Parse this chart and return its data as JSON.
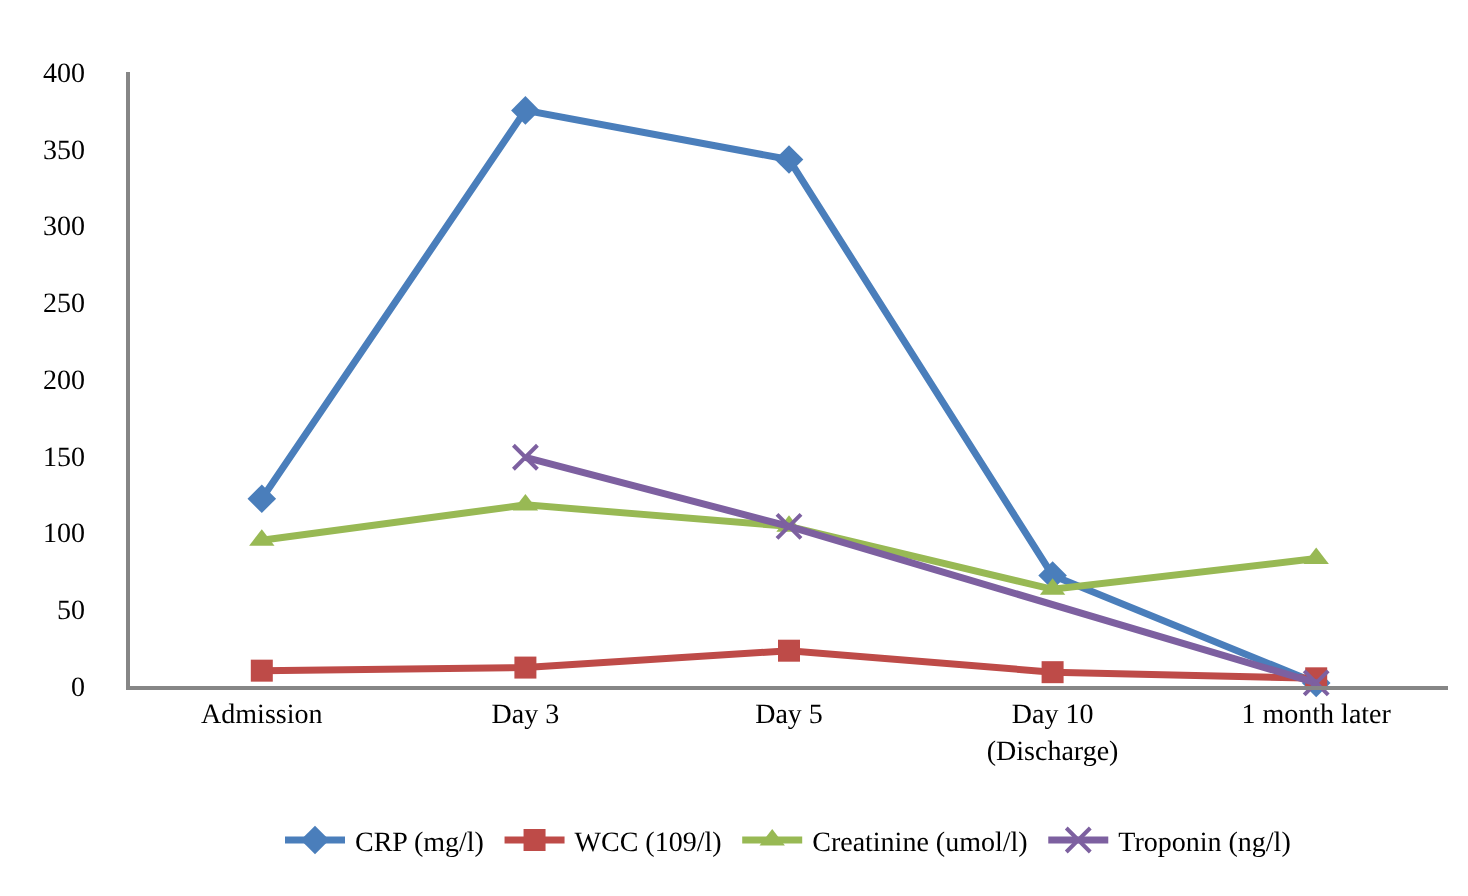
{
  "chart_data": {
    "type": "line",
    "categories": [
      "Admission",
      "Day 3",
      "Day 5",
      "Day 10\n(Discharge)",
      "1 month later"
    ],
    "series": [
      {
        "name": "CRP (mg/l)",
        "color": "#4a7ebb",
        "marker": "diamond",
        "values": [
          122,
          375,
          343,
          72,
          2
        ]
      },
      {
        "name": "WCC (109/l)",
        "color": "#be4b48",
        "marker": "square",
        "values": [
          10,
          12,
          23,
          9,
          5
        ]
      },
      {
        "name": "Creatinine (umol/l)",
        "color": "#98b954",
        "marker": "triangle",
        "values": [
          95,
          118,
          104,
          63,
          83
        ]
      },
      {
        "name": "Troponin (ng/l)",
        "color": "#7d60a0",
        "marker": "cross",
        "values": [
          null,
          149,
          104,
          null,
          2
        ]
      }
    ],
    "ylim": [
      0,
      400
    ],
    "yticks": [
      0,
      50,
      100,
      150,
      200,
      250,
      300,
      350,
      400
    ],
    "legend": "bottom",
    "line_style": "solid"
  }
}
